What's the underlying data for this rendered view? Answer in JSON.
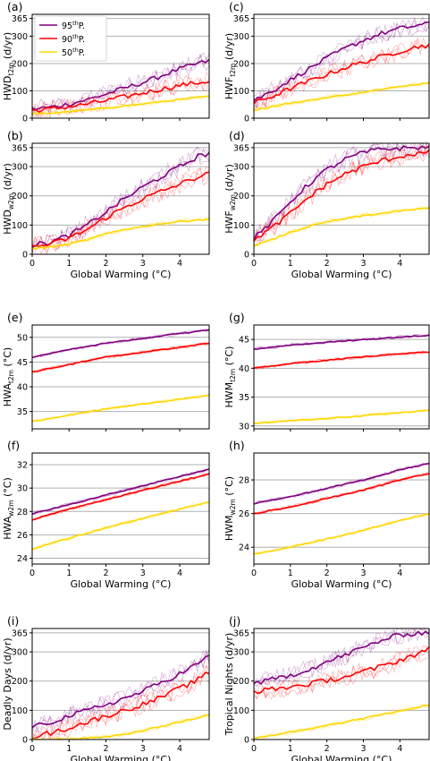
{
  "colors": {
    "p95": "#800080",
    "p90": "#ff0000",
    "p50": "#ffd700",
    "grid": "#b0b0b0"
  },
  "legend": {
    "entries": [
      "95thP.",
      "90thP.",
      "50thP."
    ],
    "sup": "th",
    "main": [
      "95",
      "90",
      "50"
    ],
    "tail": "P."
  },
  "chart_data": [
    {
      "id": "a",
      "panel_label": "(a)",
      "type": "line",
      "ylabel_main": "HWD",
      "ylabel_sub": "t2m",
      "ylabel_tail": " (d/yr)",
      "xlabel": "",
      "xlim": [
        0,
        4.8
      ],
      "ylim": [
        0,
        380
      ],
      "xticks": [
        0,
        1,
        2,
        3,
        4
      ],
      "yticks": [
        0,
        100,
        200,
        300,
        365
      ],
      "show_xticklabels": false,
      "x": [
        0,
        0.5,
        1,
        1.5,
        2,
        2.5,
        3,
        3.5,
        4,
        4.5,
        4.8
      ],
      "series": [
        {
          "key": "p95",
          "values": [
            33,
            40,
            52,
            68,
            88,
            110,
            130,
            155,
            180,
            200,
            210
          ]
        },
        {
          "key": "p90",
          "values": [
            28,
            33,
            42,
            52,
            64,
            78,
            92,
            106,
            120,
            130,
            135
          ]
        },
        {
          "key": "p50",
          "values": [
            15,
            18,
            24,
            30,
            37,
            45,
            52,
            60,
            68,
            76,
            80
          ]
        }
      ]
    },
    {
      "id": "c",
      "panel_label": "(c)",
      "type": "line",
      "ylabel_main": "HWF",
      "ylabel_sub": "t2m",
      "ylabel_tail": " (d/yr)",
      "xlabel": "",
      "xlim": [
        0,
        4.8
      ],
      "ylim": [
        0,
        380
      ],
      "xticks": [
        0,
        1,
        2,
        3,
        4
      ],
      "yticks": [
        0,
        100,
        200,
        300,
        365
      ],
      "show_xticklabels": false,
      "x": [
        0,
        0.5,
        1,
        1.5,
        2,
        2.5,
        3,
        3.5,
        4,
        4.5,
        4.8
      ],
      "series": [
        {
          "key": "p95",
          "values": [
            65,
            100,
            140,
            180,
            220,
            255,
            285,
            310,
            328,
            340,
            345
          ]
        },
        {
          "key": "p90",
          "values": [
            55,
            80,
            108,
            135,
            160,
            185,
            205,
            225,
            245,
            262,
            268
          ]
        },
        {
          "key": "p50",
          "values": [
            30,
            42,
            55,
            65,
            75,
            85,
            95,
            105,
            115,
            125,
            128
          ]
        }
      ]
    },
    {
      "id": "b",
      "panel_label": "(b)",
      "type": "line",
      "ylabel_main": "HWD",
      "ylabel_sub": "w2m",
      "ylabel_tail": " (d/yr)",
      "xlabel": "Global Warming (°C)",
      "xlim": [
        0,
        4.8
      ],
      "ylim": [
        0,
        380
      ],
      "xticks": [
        0,
        1,
        2,
        3,
        4
      ],
      "yticks": [
        0,
        100,
        200,
        300,
        365
      ],
      "show_xticklabels": true,
      "x": [
        0,
        0.5,
        1,
        1.5,
        2,
        2.5,
        3,
        3.5,
        4,
        4.5,
        4.8
      ],
      "series": [
        {
          "key": "p95",
          "values": [
            30,
            42,
            65,
            100,
            145,
            190,
            230,
            265,
            300,
            335,
            345
          ]
        },
        {
          "key": "p90",
          "values": [
            25,
            35,
            55,
            85,
            125,
            160,
            190,
            215,
            240,
            265,
            275
          ]
        },
        {
          "key": "p50",
          "values": [
            20,
            25,
            35,
            50,
            70,
            85,
            95,
            105,
            112,
            118,
            120
          ]
        }
      ]
    },
    {
      "id": "d",
      "panel_label": "(d)",
      "type": "line",
      "ylabel_main": "HWF",
      "ylabel_sub": "w2m",
      "ylabel_tail": " (d/yr)",
      "xlabel": "Global Warming (°C)",
      "xlim": [
        0,
        4.8
      ],
      "ylim": [
        0,
        380
      ],
      "xticks": [
        0,
        1,
        2,
        3,
        4
      ],
      "yticks": [
        0,
        100,
        200,
        300,
        365
      ],
      "show_xticklabels": true,
      "x": [
        0,
        0.5,
        1,
        1.5,
        2,
        2.5,
        3,
        3.5,
        4,
        4.5,
        4.8
      ],
      "series": [
        {
          "key": "p95",
          "values": [
            55,
            110,
            180,
            240,
            290,
            325,
            348,
            360,
            363,
            365,
            365
          ]
        },
        {
          "key": "p90",
          "values": [
            50,
            90,
            140,
            195,
            240,
            275,
            300,
            320,
            335,
            345,
            348
          ]
        },
        {
          "key": "p50",
          "values": [
            30,
            50,
            75,
            95,
            110,
            122,
            132,
            140,
            148,
            155,
            158
          ]
        }
      ]
    },
    {
      "id": "e",
      "panel_label": "(e)",
      "type": "line",
      "ylabel_main": "HWA",
      "ylabel_sub": "t2m",
      "ylabel_tail": " (°C)",
      "xlabel": "",
      "xlim": [
        0,
        4.8
      ],
      "ylim": [
        31.5,
        52.5
      ],
      "xticks": [
        0,
        1,
        2,
        3,
        4
      ],
      "yticks": [
        35,
        40,
        45,
        50
      ],
      "show_xticklabels": false,
      "x": [
        0,
        1,
        2,
        3,
        4,
        4.8
      ],
      "series": [
        {
          "key": "p95",
          "values": [
            46,
            47.5,
            48.8,
            49.8,
            50.8,
            51.5
          ]
        },
        {
          "key": "p90",
          "values": [
            43,
            44.5,
            46,
            47,
            48,
            48.8
          ]
        },
        {
          "key": "p50",
          "values": [
            33,
            34.3,
            35.5,
            36.5,
            37.5,
            38.3
          ]
        }
      ]
    },
    {
      "id": "g",
      "panel_label": "(g)",
      "type": "line",
      "ylabel_main": "HWM",
      "ylabel_sub": "t2m",
      "ylabel_tail": " (°C)",
      "xlabel": "",
      "xlim": [
        0,
        4.8
      ],
      "ylim": [
        29.5,
        47.5
      ],
      "xticks": [
        0,
        1,
        2,
        3,
        4
      ],
      "yticks": [
        30,
        35,
        40,
        45
      ],
      "show_xticklabels": false,
      "x": [
        0,
        1,
        2,
        3,
        4,
        4.8
      ],
      "series": [
        {
          "key": "p95",
          "values": [
            43.3,
            44,
            44.5,
            45,
            45.4,
            45.7
          ]
        },
        {
          "key": "p90",
          "values": [
            40,
            40.8,
            41.4,
            42,
            42.5,
            42.8
          ]
        },
        {
          "key": "p50",
          "values": [
            30.5,
            30.9,
            31.3,
            31.8,
            32.3,
            32.7
          ]
        }
      ]
    },
    {
      "id": "f",
      "panel_label": "(f)",
      "type": "line",
      "ylabel_main": "HWA",
      "ylabel_sub": "w2m",
      "ylabel_tail": " (°C)",
      "xlabel": "Global Warming (°C)",
      "xlim": [
        0,
        4.8
      ],
      "ylim": [
        23.5,
        33
      ],
      "xticks": [
        0,
        1,
        2,
        3,
        4
      ],
      "yticks": [
        24,
        26,
        28,
        30,
        32
      ],
      "show_xticklabels": true,
      "x": [
        0,
        1,
        2,
        3,
        4,
        4.8
      ],
      "series": [
        {
          "key": "p95",
          "values": [
            27.8,
            28.6,
            29.4,
            30.2,
            31,
            31.6
          ]
        },
        {
          "key": "p90",
          "values": [
            27.3,
            28.2,
            29,
            29.8,
            30.6,
            31.2
          ]
        },
        {
          "key": "p50",
          "values": [
            24.8,
            25.7,
            26.6,
            27.4,
            28.2,
            28.8
          ]
        }
      ]
    },
    {
      "id": "h",
      "panel_label": "(h)",
      "type": "line",
      "ylabel_main": "HWM",
      "ylabel_sub": "w2m",
      "ylabel_tail": " (°C)",
      "xlabel": "Global Warming (°C)",
      "xlim": [
        0,
        4.8
      ],
      "ylim": [
        23,
        29.6
      ],
      "xticks": [
        0,
        1,
        2,
        3,
        4
      ],
      "yticks": [
        24,
        26,
        28
      ],
      "show_xticklabels": true,
      "x": [
        0,
        1,
        2,
        3,
        4,
        4.8
      ],
      "series": [
        {
          "key": "p95",
          "values": [
            26.6,
            27,
            27.5,
            28,
            28.6,
            29
          ]
        },
        {
          "key": "p90",
          "values": [
            26,
            26.4,
            26.9,
            27.4,
            28,
            28.4
          ]
        },
        {
          "key": "p50",
          "values": [
            23.6,
            24,
            24.5,
            25,
            25.6,
            26
          ]
        }
      ]
    },
    {
      "id": "i",
      "panel_label": "(i)",
      "type": "line",
      "ylabel_main": "Deadly Days",
      "ylabel_sub": "",
      "ylabel_tail": " (d/yr)",
      "xlabel": "Global Warming (°C)",
      "xlim": [
        0,
        4.8
      ],
      "ylim": [
        0,
        380
      ],
      "xticks": [
        0,
        1,
        2,
        3,
        4
      ],
      "yticks": [
        0,
        100,
        200,
        300,
        365
      ],
      "show_xticklabels": true,
      "x": [
        0,
        0.5,
        1,
        1.5,
        2,
        2.5,
        3,
        3.5,
        4,
        4.5,
        4.8
      ],
      "series": [
        {
          "key": "p95",
          "values": [
            40,
            60,
            80,
            100,
            120,
            140,
            165,
            195,
            225,
            260,
            285
          ]
        },
        {
          "key": "p90",
          "values": [
            10,
            22,
            40,
            60,
            80,
            100,
            120,
            145,
            175,
            205,
            230
          ]
        },
        {
          "key": "p50",
          "values": [
            0,
            0,
            2,
            5,
            10,
            18,
            30,
            45,
            60,
            75,
            85
          ]
        }
      ]
    },
    {
      "id": "j",
      "panel_label": "(j)",
      "type": "line",
      "ylabel_main": "Tropical Nights",
      "ylabel_sub": "",
      "ylabel_tail": " (d/yr)",
      "xlabel": "Global Warming (°C)",
      "xlim": [
        0,
        4.8
      ],
      "ylim": [
        0,
        380
      ],
      "xticks": [
        0,
        1,
        2,
        3,
        4
      ],
      "yticks": [
        0,
        100,
        200,
        300,
        365
      ],
      "show_xticklabels": true,
      "x": [
        0,
        0.5,
        1,
        1.5,
        2,
        2.5,
        3,
        3.5,
        4,
        4.5,
        4.8
      ],
      "series": [
        {
          "key": "p95",
          "values": [
            190,
            205,
            220,
            240,
            265,
            290,
            315,
            340,
            358,
            365,
            365
          ]
        },
        {
          "key": "p90",
          "values": [
            165,
            172,
            180,
            190,
            202,
            215,
            232,
            250,
            272,
            295,
            310
          ]
        },
        {
          "key": "p50",
          "values": [
            5,
            15,
            25,
            35,
            48,
            60,
            72,
            85,
            98,
            110,
            118
          ]
        }
      ]
    }
  ]
}
